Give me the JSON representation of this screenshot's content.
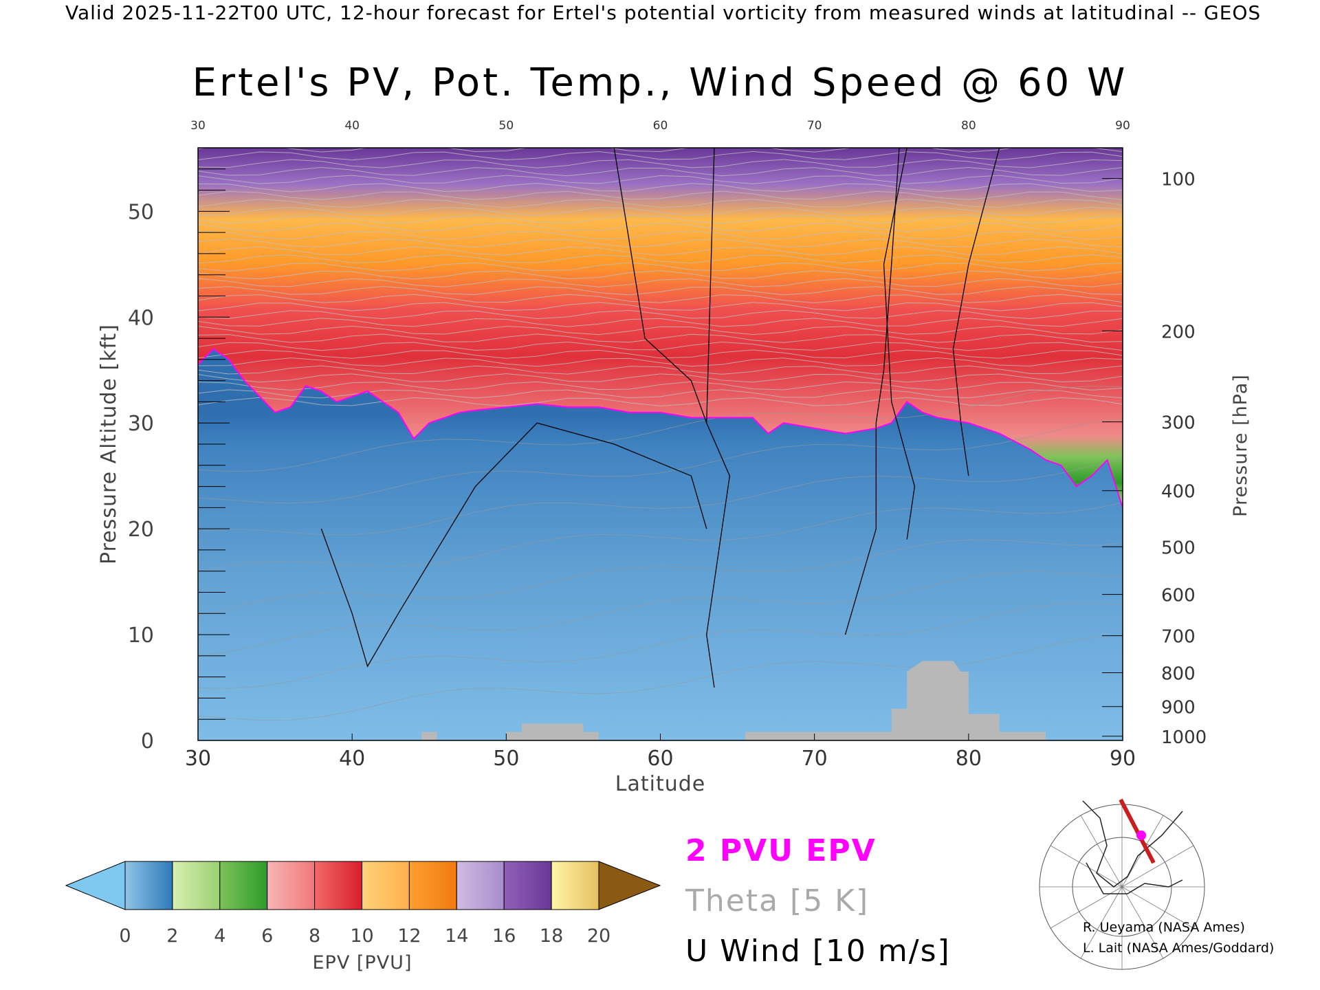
{
  "header": {
    "valid_text": "Valid 2025-11-22T00 UTC, 12-hour forecast for Ertel's potential vorticity from measured winds at latitudinal -- GEOS"
  },
  "chart_data": {
    "type": "heatmap",
    "title": "Ertel's PV, Pot. Temp., Wind Speed @ 60 W",
    "xlabel": "Latitude",
    "ylabel": "Pressure Altitude [kft]",
    "ylabel_right": "Pressure [hPa]",
    "xlim": [
      30,
      90
    ],
    "ylim": [
      0,
      56
    ],
    "x_ticks": [
      30,
      40,
      50,
      60,
      70,
      80,
      90
    ],
    "y_ticks": [
      0,
      10,
      20,
      30,
      40,
      50
    ],
    "pressure_ticks": [
      {
        "label": "100",
        "kft": 53.1
      },
      {
        "label": "200",
        "kft": 38.7
      },
      {
        "label": "300",
        "kft": 30.1
      },
      {
        "label": "400",
        "kft": 23.6
      },
      {
        "label": "500",
        "kft": 18.3
      },
      {
        "label": "600",
        "kft": 13.8
      },
      {
        "label": "700",
        "kft": 9.9
      },
      {
        "label": "800",
        "kft": 6.4
      },
      {
        "label": "900",
        "kft": 3.2
      },
      {
        "label": "1000",
        "kft": 0.4
      }
    ],
    "tropopause_2pvu_kft": [
      [
        30,
        35.5
      ],
      [
        31,
        37
      ],
      [
        32,
        36
      ],
      [
        33,
        34
      ],
      [
        34,
        32.5
      ],
      [
        35,
        31
      ],
      [
        36,
        31.5
      ],
      [
        37,
        33.5
      ],
      [
        38,
        33
      ],
      [
        39,
        32
      ],
      [
        40,
        32.5
      ],
      [
        41,
        33
      ],
      [
        42,
        32
      ],
      [
        43,
        31
      ],
      [
        44,
        28.5
      ],
      [
        45,
        30
      ],
      [
        46,
        30.5
      ],
      [
        47,
        31
      ],
      [
        48,
        31.2
      ],
      [
        50,
        31.5
      ],
      [
        52,
        31.8
      ],
      [
        54,
        31.5
      ],
      [
        56,
        31.5
      ],
      [
        58,
        31
      ],
      [
        60,
        31
      ],
      [
        62,
        30.5
      ],
      [
        64,
        30.5
      ],
      [
        66,
        30.5
      ],
      [
        67,
        29
      ],
      [
        68,
        30
      ],
      [
        70,
        29.5
      ],
      [
        72,
        29
      ],
      [
        74,
        29.5
      ],
      [
        75,
        30
      ],
      [
        76,
        32
      ],
      [
        77,
        31
      ],
      [
        78,
        30.5
      ],
      [
        80,
        30
      ],
      [
        82,
        29
      ],
      [
        84,
        27.5
      ],
      [
        85,
        26.5
      ],
      [
        86,
        26
      ],
      [
        87,
        24
      ],
      [
        88,
        25
      ],
      [
        89,
        26.5
      ],
      [
        90,
        22
      ]
    ],
    "terrain_kft": [
      [
        30,
        0
      ],
      [
        44.5,
        0
      ],
      [
        44.5,
        0.8
      ],
      [
        45.5,
        0.8
      ],
      [
        45.5,
        0
      ],
      [
        50,
        0
      ],
      [
        50,
        0.8
      ],
      [
        51,
        0.8
      ],
      [
        51,
        1.6
      ],
      [
        55,
        1.6
      ],
      [
        55,
        0.8
      ],
      [
        56,
        0.8
      ],
      [
        56,
        0
      ],
      [
        65.5,
        0
      ],
      [
        65.5,
        0.8
      ],
      [
        75,
        0.8
      ],
      [
        75,
        3
      ],
      [
        76,
        3
      ],
      [
        76,
        6.5
      ],
      [
        77,
        7.5
      ],
      [
        79,
        7.5
      ],
      [
        79.5,
        6.5
      ],
      [
        80,
        6.5
      ],
      [
        80,
        2.5
      ],
      [
        82,
        2.5
      ],
      [
        82,
        0.8
      ],
      [
        85,
        0.8
      ],
      [
        85,
        0
      ],
      [
        90,
        0
      ]
    ],
    "wind_contours": [
      {
        "label": "0",
        "kft": [
          [
            63.5,
            56
          ],
          [
            63,
            30
          ],
          [
            64.5,
            25
          ],
          [
            63,
            10
          ],
          [
            63.5,
            5
          ]
        ]
      },
      {
        "label": "10",
        "kft": [
          [
            57,
            56
          ],
          [
            58,
            47
          ],
          [
            59,
            38
          ],
          [
            62,
            34
          ],
          [
            63,
            30
          ]
        ]
      },
      {
        "label": "10",
        "kft": [
          [
            76,
            56
          ],
          [
            74.5,
            45
          ],
          [
            75,
            32
          ],
          [
            76.5,
            24
          ],
          [
            76,
            19
          ]
        ]
      },
      {
        "label": "10",
        "kft": [
          [
            82,
            56
          ],
          [
            80,
            45
          ],
          [
            79,
            37
          ],
          [
            79.5,
            30
          ],
          [
            80,
            25
          ]
        ]
      },
      {
        "label": "10",
        "kft": [
          [
            75.5,
            56
          ],
          [
            75,
            45
          ],
          [
            74.5,
            35
          ],
          [
            74,
            30
          ],
          [
            74,
            20
          ],
          [
            72,
            10
          ]
        ]
      },
      {
        "label": "10",
        "kft": [
          [
            38,
            20
          ],
          [
            40,
            12
          ],
          [
            41,
            7
          ],
          [
            43,
            12
          ],
          [
            48,
            24
          ],
          [
            52,
            30
          ],
          [
            57,
            28
          ],
          [
            62,
            25
          ],
          [
            63,
            20
          ]
        ]
      }
    ],
    "colorbar": {
      "label": "EPV [PVU]",
      "ticks": [
        0,
        2,
        4,
        6,
        8,
        10,
        12,
        14,
        16,
        18,
        20
      ],
      "under_color": "#7fc8f0",
      "over_color": "#8b5a12",
      "segments": [
        {
          "from": 0,
          "to": 2,
          "colors": [
            "#8fc4e6",
            "#2f79b9"
          ]
        },
        {
          "from": 2,
          "to": 4,
          "colors": [
            "#d8efb2",
            "#9cd070"
          ]
        },
        {
          "from": 4,
          "to": 6,
          "colors": [
            "#7ec35a",
            "#2e9a2a"
          ]
        },
        {
          "from": 6,
          "to": 8,
          "colors": [
            "#f8b6b6",
            "#f07878"
          ]
        },
        {
          "from": 8,
          "to": 10,
          "colors": [
            "#f26a6a",
            "#d81e2a"
          ]
        },
        {
          "from": 10,
          "to": 12,
          "colors": [
            "#ffd27a",
            "#ffb04a"
          ]
        },
        {
          "from": 12,
          "to": 14,
          "colors": [
            "#ffa030",
            "#f07a10"
          ]
        },
        {
          "from": 14,
          "to": 16,
          "colors": [
            "#d0bce2",
            "#a88ccc"
          ]
        },
        {
          "from": 16,
          "to": 18,
          "colors": [
            "#9060b8",
            "#6a3898"
          ]
        },
        {
          "from": 18,
          "to": 20,
          "colors": [
            "#fff6a8",
            "#e6c060"
          ]
        }
      ]
    },
    "legend": {
      "epv_label": "2 PVU EPV",
      "epv_color": "#ff00ff",
      "theta_label": "Theta [5 K]",
      "theta_color": "#aaaaaa",
      "wind_label": "U Wind [10 m/s]",
      "wind_color": "#000000"
    },
    "grid": false
  },
  "credits": {
    "line1": "R. Ueyama (NASA Ames)",
    "line2": "L. Lait (NASA Ames/Goddard)"
  },
  "map_inset": {
    "icon": "polar-map-icon",
    "track_color": "#c81e1e",
    "marker_color": "#ff00ff"
  }
}
